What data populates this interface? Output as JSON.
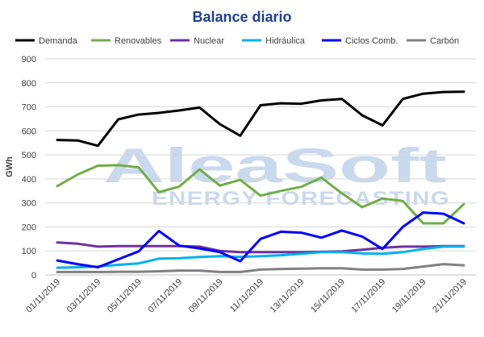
{
  "watermark": {
    "brand": "AleaSoft",
    "tagline": "ENERGY FORECASTING"
  },
  "chart_data": {
    "type": "line",
    "title": "Balance diario",
    "ylabel": "GWh",
    "xlabel": "",
    "ylim": [
      0,
      900
    ],
    "yticks": [
      0,
      100,
      200,
      300,
      400,
      500,
      600,
      700,
      800,
      900
    ],
    "grid": true,
    "legend_position": "top",
    "x": [
      "01/11/2019",
      "02/11/2019",
      "03/11/2019",
      "04/11/2019",
      "05/11/2019",
      "06/11/2019",
      "07/11/2019",
      "08/11/2019",
      "09/11/2019",
      "10/11/2019",
      "11/11/2019",
      "12/11/2019",
      "13/11/2019",
      "14/11/2019",
      "15/11/2019",
      "16/11/2019",
      "17/11/2019",
      "18/11/2019",
      "19/11/2019",
      "20/11/2019",
      "21/11/2019"
    ],
    "xtick_labels": [
      "01/11/2019",
      "03/11/2019",
      "05/11/2019",
      "07/11/2019",
      "09/11/2019",
      "11/11/2019",
      "13/11/2019",
      "15/11/2019",
      "17/11/2019",
      "19/11/2019",
      "21/11/2019"
    ],
    "series": [
      {
        "name": "Demanda",
        "color": "#000000",
        "values": [
          562,
          560,
          538,
          648,
          668,
          675,
          685,
          697,
          628,
          580,
          707,
          715,
          713,
          727,
          733,
          665,
          623,
          733,
          755,
          762,
          763
        ]
      },
      {
        "name": "Renovables",
        "color": "#70ad47",
        "values": [
          370,
          418,
          455,
          457,
          448,
          345,
          368,
          440,
          372,
          396,
          330,
          350,
          367,
          405,
          340,
          282,
          318,
          308,
          215,
          215,
          295
        ]
      },
      {
        "name": "Nuclear",
        "color": "#7030a0",
        "values": [
          135,
          130,
          118,
          120,
          120,
          120,
          120,
          118,
          100,
          95,
          95,
          95,
          95,
          96,
          98,
          105,
          113,
          118,
          118,
          120,
          120
        ]
      },
      {
        "name": "Hidráulica",
        "color": "#00b0f0",
        "values": [
          30,
          32,
          35,
          42,
          48,
          68,
          70,
          75,
          78,
          75,
          78,
          82,
          88,
          95,
          95,
          90,
          88,
          95,
          108,
          118,
          118
        ]
      },
      {
        "name": "Ciclos Comb.",
        "color": "#0000ff",
        "values": [
          60,
          45,
          32,
          65,
          98,
          183,
          122,
          110,
          95,
          57,
          150,
          180,
          176,
          155,
          185,
          160,
          108,
          200,
          260,
          255,
          215
        ]
      },
      {
        "name": "Carbón",
        "color": "#808080",
        "values": [
          12,
          12,
          12,
          13,
          13,
          15,
          18,
          18,
          12,
          12,
          22,
          25,
          26,
          28,
          28,
          22,
          22,
          25,
          35,
          45,
          40
        ]
      }
    ]
  }
}
